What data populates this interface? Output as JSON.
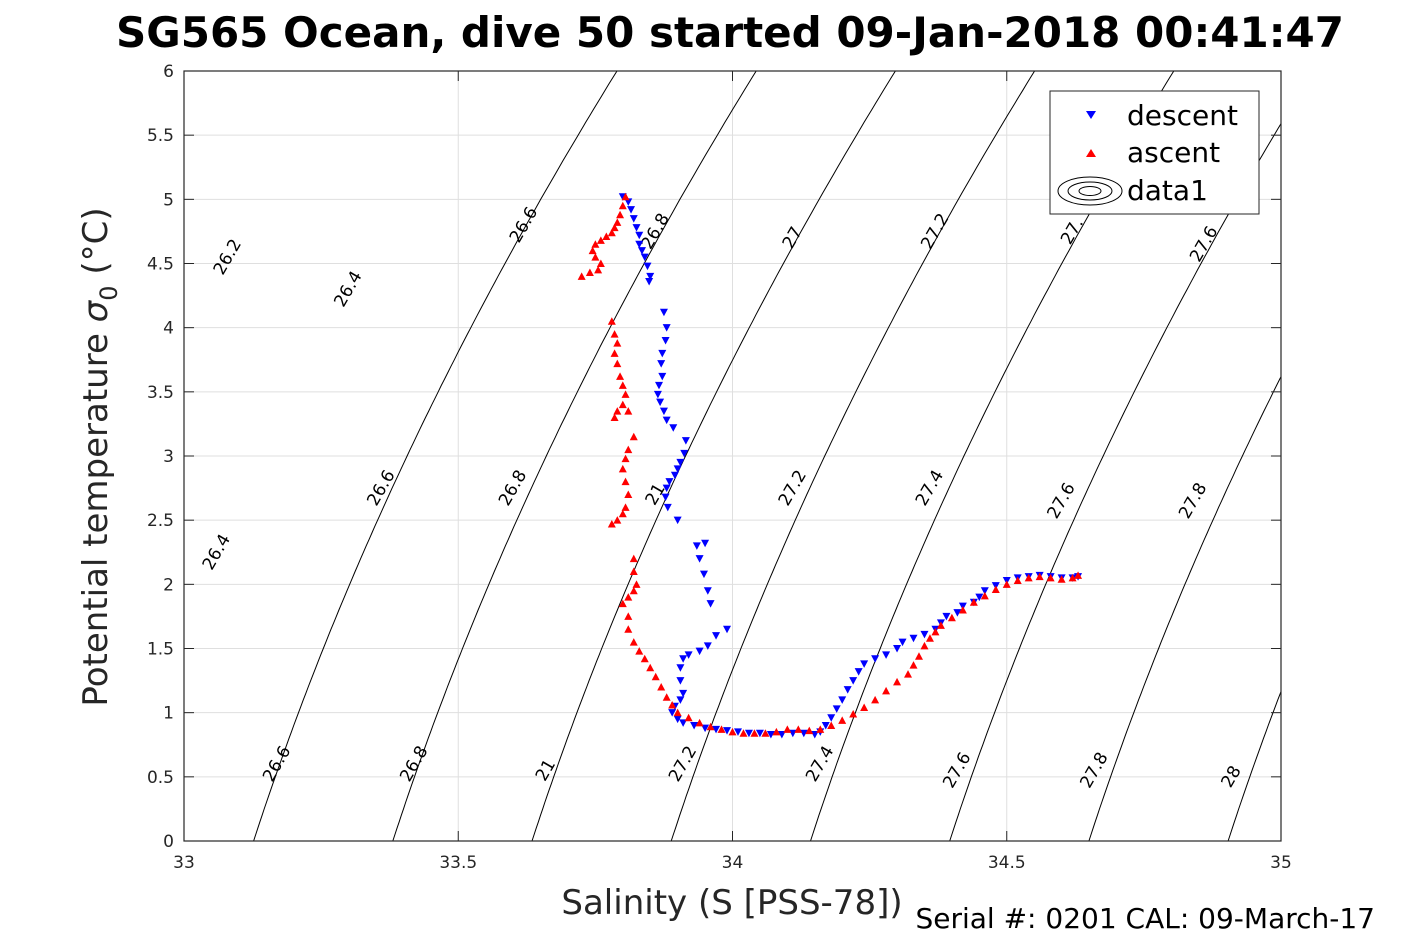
{
  "figure": {
    "title": "SG565 Ocean, dive 50 started 09-Jan-2018 00:41:47",
    "footer": "Serial #: 0201  CAL: 09-March-17"
  },
  "chart_data": {
    "type": "scatter",
    "title": "SG565 Ocean, dive 50 started 09-Jan-2018 00:41:47",
    "xlabel": "Salinity (S [PSS-78])",
    "ylabel_main": "Potential temperature ",
    "ylabel_sigma": "σ",
    "ylabel_sub": "0",
    "ylabel_unit": " (°C)",
    "xlim": [
      33,
      35
    ],
    "ylim": [
      0,
      6
    ],
    "xticks": [
      33,
      33.5,
      34,
      34.5,
      35
    ],
    "xtick_labels": [
      "33",
      "33.5",
      "34",
      "34.5",
      "35"
    ],
    "yticks": [
      0,
      0.5,
      1,
      1.5,
      2,
      2.5,
      3,
      3.5,
      4,
      4.5,
      5,
      5.5,
      6
    ],
    "ytick_labels": [
      "0",
      "0.5",
      "1",
      "1.5",
      "2",
      "2.5",
      "3",
      "3.5",
      "4",
      "4.5",
      "5",
      "5.5",
      "6"
    ],
    "grid": true,
    "legend_position": "top-right",
    "contour_levels": [
      26.2,
      26.4,
      26.6,
      26.8,
      27,
      27.2,
      27.4,
      27.6,
      27.8,
      28
    ],
    "contour_labels": [
      {
        "text": "26.2",
        "s": 33.08,
        "t": 4.55
      },
      {
        "text": "26.4",
        "s": 33.3,
        "t": 4.3
      },
      {
        "text": "26.6",
        "s": 33.62,
        "t": 4.8
      },
      {
        "text": "26.8",
        "s": 33.86,
        "t": 4.75
      },
      {
        "text": "27",
        "s": 34.11,
        "t": 4.7
      },
      {
        "text": "27.2",
        "s": 34.37,
        "t": 4.75
      },
      {
        "text": "27.",
        "s": 34.62,
        "t": 4.75
      },
      {
        "text": "27.6",
        "s": 34.86,
        "t": 4.65
      },
      {
        "text": "26.4",
        "s": 33.06,
        "t": 2.25
      },
      {
        "text": "26.6",
        "s": 33.36,
        "t": 2.75
      },
      {
        "text": "26.8",
        "s": 33.6,
        "t": 2.75
      },
      {
        "text": "21",
        "s": 33.86,
        "t": 2.7
      },
      {
        "text": "27.2",
        "s": 34.11,
        "t": 2.75
      },
      {
        "text": "27.4",
        "s": 34.36,
        "t": 2.75
      },
      {
        "text": "27.6",
        "s": 34.6,
        "t": 2.65
      },
      {
        "text": "27.8",
        "s": 34.84,
        "t": 2.65
      },
      {
        "text": "26.6",
        "s": 33.17,
        "t": 0.6
      },
      {
        "text": "26.8",
        "s": 33.42,
        "t": 0.6
      },
      {
        "text": "21",
        "s": 33.66,
        "t": 0.55
      },
      {
        "text": "27.2",
        "s": 33.91,
        "t": 0.6
      },
      {
        "text": "27.4",
        "s": 34.16,
        "t": 0.6
      },
      {
        "text": "27.6",
        "s": 34.41,
        "t": 0.55
      },
      {
        "text": "27.8",
        "s": 34.66,
        "t": 0.55
      },
      {
        "text": "28",
        "s": 34.91,
        "t": 0.5
      }
    ],
    "series": [
      {
        "name": "descent",
        "marker": "triangle-down",
        "color": "#0000ff",
        "points": [
          [
            33.8,
            5.02
          ],
          [
            33.81,
            4.98
          ],
          [
            33.815,
            4.92
          ],
          [
            33.82,
            4.85
          ],
          [
            33.825,
            4.78
          ],
          [
            33.83,
            4.72
          ],
          [
            33.83,
            4.65
          ],
          [
            33.835,
            4.6
          ],
          [
            33.84,
            4.55
          ],
          [
            33.845,
            4.48
          ],
          [
            33.85,
            4.4
          ],
          [
            33.848,
            4.36
          ],
          [
            33.875,
            4.12
          ],
          [
            33.88,
            4.0
          ],
          [
            33.878,
            3.9
          ],
          [
            33.872,
            3.8
          ],
          [
            33.87,
            3.72
          ],
          [
            33.872,
            3.62
          ],
          [
            33.866,
            3.55
          ],
          [
            33.864,
            3.48
          ],
          [
            33.868,
            3.42
          ],
          [
            33.875,
            3.35
          ],
          [
            33.88,
            3.28
          ],
          [
            33.892,
            3.22
          ],
          [
            33.915,
            3.12
          ],
          [
            33.912,
            3.02
          ],
          [
            33.905,
            2.95
          ],
          [
            33.9,
            2.9
          ],
          [
            33.895,
            2.85
          ],
          [
            33.885,
            2.8
          ],
          [
            33.88,
            2.75
          ],
          [
            33.878,
            2.68
          ],
          [
            33.882,
            2.6
          ],
          [
            33.9,
            2.5
          ],
          [
            33.935,
            2.3
          ],
          [
            33.95,
            2.32
          ],
          [
            33.94,
            2.2
          ],
          [
            33.948,
            2.08
          ],
          [
            33.955,
            1.95
          ],
          [
            33.96,
            1.85
          ],
          [
            33.99,
            1.65
          ],
          [
            33.97,
            1.6
          ],
          [
            33.955,
            1.52
          ],
          [
            33.94,
            1.48
          ],
          [
            33.92,
            1.45
          ],
          [
            33.91,
            1.42
          ],
          [
            33.905,
            1.35
          ],
          [
            33.905,
            1.25
          ],
          [
            33.91,
            1.15
          ],
          [
            33.905,
            1.1
          ],
          [
            33.895,
            1.05
          ],
          [
            33.89,
            1.0
          ],
          [
            33.9,
            0.95
          ],
          [
            33.91,
            0.92
          ],
          [
            33.93,
            0.9
          ],
          [
            33.95,
            0.88
          ],
          [
            33.97,
            0.87
          ],
          [
            33.99,
            0.86
          ],
          [
            34.01,
            0.85
          ],
          [
            34.03,
            0.84
          ],
          [
            34.05,
            0.84
          ],
          [
            34.07,
            0.83
          ],
          [
            34.09,
            0.83
          ],
          [
            34.11,
            0.84
          ],
          [
            34.13,
            0.84
          ],
          [
            34.15,
            0.83
          ],
          [
            34.16,
            0.85
          ],
          [
            34.17,
            0.9
          ],
          [
            34.18,
            0.96
          ],
          [
            34.19,
            1.03
          ],
          [
            34.2,
            1.1
          ],
          [
            34.21,
            1.18
          ],
          [
            34.22,
            1.25
          ],
          [
            34.23,
            1.32
          ],
          [
            34.24,
            1.38
          ],
          [
            34.26,
            1.42
          ],
          [
            34.28,
            1.45
          ],
          [
            34.3,
            1.5
          ],
          [
            34.31,
            1.55
          ],
          [
            34.33,
            1.58
          ],
          [
            34.35,
            1.61
          ],
          [
            34.37,
            1.65
          ],
          [
            34.38,
            1.7
          ],
          [
            34.39,
            1.75
          ],
          [
            34.41,
            1.78
          ],
          [
            34.42,
            1.83
          ],
          [
            34.44,
            1.86
          ],
          [
            34.45,
            1.9
          ],
          [
            34.46,
            1.95
          ],
          [
            34.48,
            1.99
          ],
          [
            34.5,
            2.03
          ],
          [
            34.52,
            2.05
          ],
          [
            34.54,
            2.06
          ],
          [
            34.56,
            2.07
          ],
          [
            34.58,
            2.06
          ],
          [
            34.6,
            2.05
          ],
          [
            34.62,
            2.05
          ],
          [
            34.63,
            2.06
          ]
        ]
      },
      {
        "name": "ascent",
        "marker": "triangle-up",
        "color": "#ff0000",
        "points": [
          [
            33.805,
            5.02
          ],
          [
            33.8,
            4.95
          ],
          [
            33.795,
            4.88
          ],
          [
            33.79,
            4.82
          ],
          [
            33.785,
            4.78
          ],
          [
            33.78,
            4.74
          ],
          [
            33.77,
            4.71
          ],
          [
            33.76,
            4.68
          ],
          [
            33.75,
            4.65
          ],
          [
            33.745,
            4.6
          ],
          [
            33.75,
            4.55
          ],
          [
            33.76,
            4.5
          ],
          [
            33.755,
            4.45
          ],
          [
            33.74,
            4.43
          ],
          [
            33.725,
            4.4
          ],
          [
            33.78,
            4.05
          ],
          [
            33.785,
            3.95
          ],
          [
            33.79,
            3.88
          ],
          [
            33.785,
            3.8
          ],
          [
            33.79,
            3.72
          ],
          [
            33.795,
            3.62
          ],
          [
            33.8,
            3.55
          ],
          [
            33.805,
            3.48
          ],
          [
            33.8,
            3.4
          ],
          [
            33.79,
            3.35
          ],
          [
            33.785,
            3.3
          ],
          [
            33.81,
            3.35
          ],
          [
            33.82,
            3.15
          ],
          [
            33.81,
            3.05
          ],
          [
            33.805,
            2.98
          ],
          [
            33.8,
            2.9
          ],
          [
            33.805,
            2.8
          ],
          [
            33.81,
            2.7
          ],
          [
            33.805,
            2.6
          ],
          [
            33.8,
            2.55
          ],
          [
            33.79,
            2.5
          ],
          [
            33.78,
            2.47
          ],
          [
            33.82,
            2.2
          ],
          [
            33.82,
            2.1
          ],
          [
            33.825,
            2.0
          ],
          [
            33.82,
            1.95
          ],
          [
            33.81,
            1.9
          ],
          [
            33.8,
            1.85
          ],
          [
            33.81,
            1.75
          ],
          [
            33.81,
            1.65
          ],
          [
            33.82,
            1.55
          ],
          [
            33.83,
            1.48
          ],
          [
            33.84,
            1.42
          ],
          [
            33.85,
            1.35
          ],
          [
            33.86,
            1.28
          ],
          [
            33.87,
            1.2
          ],
          [
            33.88,
            1.12
          ],
          [
            33.89,
            1.06
          ],
          [
            33.9,
            1.0
          ],
          [
            33.92,
            0.96
          ],
          [
            33.94,
            0.92
          ],
          [
            33.96,
            0.89
          ],
          [
            33.98,
            0.87
          ],
          [
            34.0,
            0.85
          ],
          [
            34.02,
            0.84
          ],
          [
            34.04,
            0.84
          ],
          [
            34.06,
            0.84
          ],
          [
            34.08,
            0.85
          ],
          [
            34.1,
            0.87
          ],
          [
            34.12,
            0.87
          ],
          [
            34.14,
            0.86
          ],
          [
            34.16,
            0.87
          ],
          [
            34.18,
            0.9
          ],
          [
            34.2,
            0.94
          ],
          [
            34.22,
            0.99
          ],
          [
            34.24,
            1.04
          ],
          [
            34.26,
            1.1
          ],
          [
            34.28,
            1.17
          ],
          [
            34.3,
            1.24
          ],
          [
            34.32,
            1.3
          ],
          [
            34.33,
            1.37
          ],
          [
            34.34,
            1.44
          ],
          [
            34.35,
            1.52
          ],
          [
            34.36,
            1.58
          ],
          [
            34.37,
            1.63
          ],
          [
            34.38,
            1.68
          ],
          [
            34.4,
            1.74
          ],
          [
            34.42,
            1.8
          ],
          [
            34.44,
            1.86
          ],
          [
            34.46,
            1.91
          ],
          [
            34.48,
            1.96
          ],
          [
            34.5,
            2.0
          ],
          [
            34.52,
            2.03
          ],
          [
            34.54,
            2.05
          ],
          [
            34.56,
            2.06
          ],
          [
            34.58,
            2.05
          ],
          [
            34.6,
            2.04
          ],
          [
            34.62,
            2.05
          ],
          [
            34.63,
            2.07
          ]
        ]
      }
    ],
    "legend": [
      {
        "label": "descent",
        "marker": "triangle-down",
        "color": "#0000ff"
      },
      {
        "label": "ascent",
        "marker": "triangle-up",
        "color": "#ff0000"
      },
      {
        "label": "data1",
        "marker": "contour",
        "color": "#000000"
      }
    ]
  }
}
